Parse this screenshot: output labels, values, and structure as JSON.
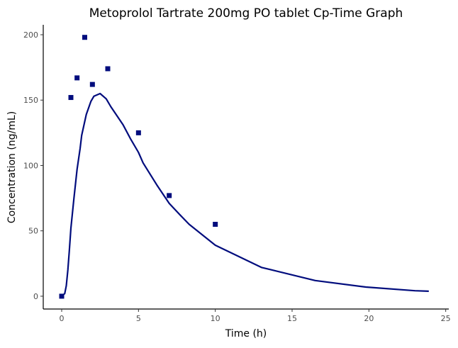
{
  "chart_data": {
    "type": "scatter+line",
    "title": "Metoprolol Tartrate 200mg PO tablet Cp-Time Graph",
    "xlabel": "Time (h)",
    "ylabel": "Concentration (ng/mL)",
    "xlim": [
      -1.2,
      25.2
    ],
    "ylim": [
      -9.8,
      207.6
    ],
    "xticks": [
      0,
      5,
      10,
      15,
      20,
      25
    ],
    "yticks": [
      0,
      50,
      100,
      150,
      200
    ],
    "grid": false,
    "color": "#000c7d",
    "observed": {
      "x": [
        0,
        0.6,
        1,
        1.5,
        2,
        3,
        5,
        7,
        10
      ],
      "y": [
        0,
        152,
        167,
        198,
        162,
        174,
        125,
        77,
        55
      ]
    },
    "fitted": {
      "x": [
        0,
        0.2,
        0.3,
        0.4,
        0.5,
        0.6,
        0.8,
        1.0,
        1.2,
        1.3,
        1.6,
        1.9,
        2.1,
        2.5,
        2.9,
        3.2,
        4.0,
        4.5,
        5.0,
        5.3,
        6.2,
        7.0,
        7.8,
        8.3,
        10,
        13,
        16.5,
        19.8,
        23,
        23.9
      ],
      "y": [
        0,
        2,
        8,
        20,
        35,
        52,
        75,
        97,
        113,
        123,
        139,
        149,
        153,
        155,
        151,
        145,
        131,
        120,
        110,
        102,
        85,
        71,
        61,
        55,
        39,
        22,
        12,
        7,
        4.2,
        3.8
      ]
    }
  }
}
